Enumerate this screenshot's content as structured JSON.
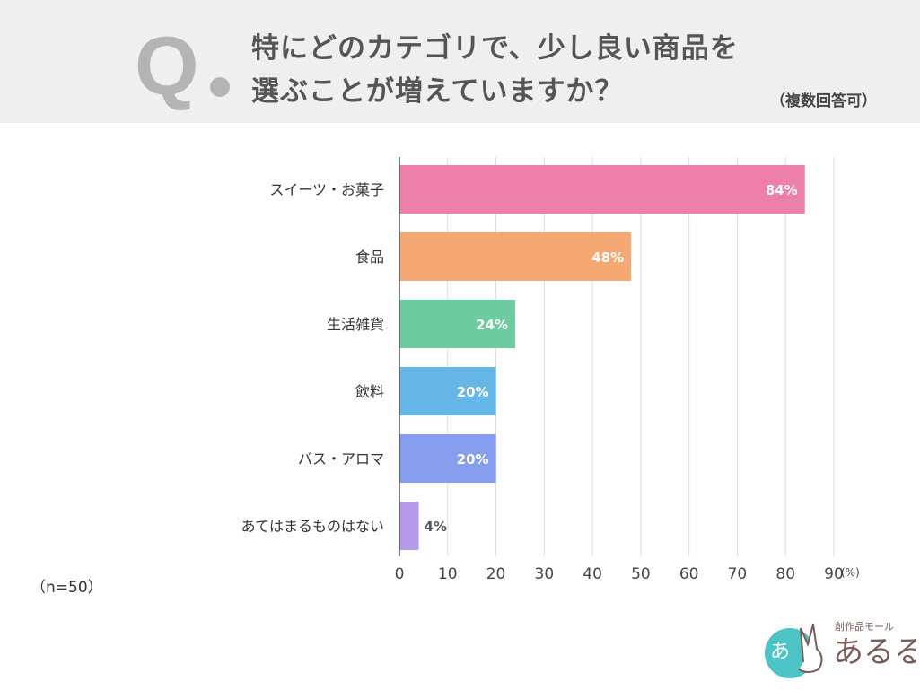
{
  "header": {
    "q_mark": "Q",
    "title_line1": "特にどのカテゴリで、少し良い商品を",
    "title_line2": "選ぶことが増えていますか？",
    "note": "（複数回答可）"
  },
  "sample_size": "（n=50）",
  "logo": {
    "text": "あるる",
    "subtitle": "創作品モール",
    "badge": "あ"
  },
  "chart_data": {
    "type": "bar",
    "orientation": "horizontal",
    "categories": [
      "スイーツ・お菓子",
      "食品",
      "生活雑貨",
      "飲料",
      "バス・アロマ",
      "あてはまるものはない"
    ],
    "values": [
      84,
      48,
      24,
      20,
      20,
      4
    ],
    "labels": [
      "84%",
      "48%",
      "24%",
      "20%",
      "20%",
      "4%"
    ],
    "colors": [
      "#ee7fa8",
      "#f5a872",
      "#6dcba0",
      "#66b6e8",
      "#869ded",
      "#b59aea"
    ],
    "xlim": [
      0,
      90
    ],
    "ticks": [
      0,
      10,
      20,
      30,
      40,
      50,
      60,
      70,
      80,
      90
    ],
    "unit": "(%)",
    "grid": true
  }
}
